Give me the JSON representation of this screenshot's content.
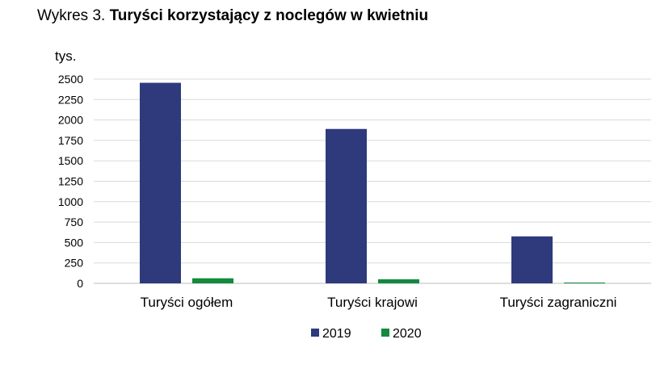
{
  "header": {
    "prefix": "Wykres 3. ",
    "title": "Turyści korzystający z noclegów w kwietniu"
  },
  "chart_data": {
    "type": "bar",
    "title": "Turyści korzystający z noclegów w kwietniu",
    "ylabel": "tys.",
    "xlabel": "",
    "categories": [
      "Turyści ogółem",
      "Turyści krajowi",
      "Turyści zagraniczni"
    ],
    "series": [
      {
        "name": "2019",
        "color": "#2e3a7c",
        "values": [
          2455,
          1890,
          575
        ]
      },
      {
        "name": "2020",
        "color": "#138a3e",
        "values": [
          62,
          50,
          8
        ]
      }
    ],
    "ylim": [
      0,
      2500
    ],
    "yticks": [
      0,
      250,
      500,
      750,
      1000,
      1250,
      1500,
      1750,
      2000,
      2250,
      2500
    ],
    "grid": true,
    "legend": "bottom"
  }
}
